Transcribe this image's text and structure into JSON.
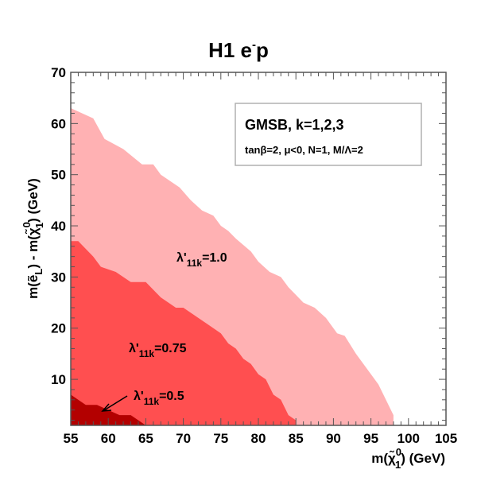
{
  "chart_data": {
    "type": "area",
    "title": "H1 e",
    "title_superscript": "-",
    "title_suffix": "p",
    "xlabel": "m(χ̃",
    "xlabel_sup": "0",
    "xlabel_sub": "1",
    "xlabel_suffix": ") (GeV)",
    "ylabel_part1": "m(ẽ",
    "ylabel_sub_L": "L",
    "ylabel_part2": ") - m(χ̃",
    "ylabel_sup": "0",
    "ylabel_sub": "1",
    "ylabel_part3": ") (GeV)",
    "xlim": [
      55,
      105
    ],
    "ylim": [
      1,
      70
    ],
    "x_ticks": [
      "55",
      "60",
      "65",
      "70",
      "75",
      "80",
      "85",
      "90",
      "95",
      "100",
      "105"
    ],
    "y_ticks": [
      "10",
      "20",
      "30",
      "40",
      "50",
      "60",
      "70"
    ],
    "x_tick_values": [
      55,
      60,
      65,
      70,
      75,
      80,
      85,
      90,
      95,
      100,
      105
    ],
    "y_tick_values": [
      10,
      20,
      30,
      40,
      50,
      60,
      70
    ],
    "legend": {
      "line1": "GMSB, k=1,2,3",
      "line2": "tanβ=2, μ<0, N=1, M/Λ=2",
      "placement": "top-right"
    },
    "series": [
      {
        "name": "λ'11k=1.0",
        "label_main": "λ'",
        "label_sub": "11k",
        "label_value": "=1.0",
        "color": "#ffb1b3",
        "boundary": [
          [
            55,
            63
          ],
          [
            58,
            61
          ],
          [
            59.5,
            57
          ],
          [
            62,
            55
          ],
          [
            64.5,
            52
          ],
          [
            66,
            52
          ],
          [
            67,
            50
          ],
          [
            69.5,
            47.5
          ],
          [
            71,
            45
          ],
          [
            72.5,
            43
          ],
          [
            74,
            42
          ],
          [
            75,
            40
          ],
          [
            76,
            39
          ],
          [
            77,
            37.5
          ],
          [
            79,
            35
          ],
          [
            80,
            33
          ],
          [
            81.5,
            31
          ],
          [
            83,
            30
          ],
          [
            84,
            28
          ],
          [
            85,
            26.5
          ],
          [
            86,
            25
          ],
          [
            87.5,
            24
          ],
          [
            89,
            22
          ],
          [
            90.5,
            19
          ],
          [
            91.5,
            18.5
          ],
          [
            93,
            15
          ],
          [
            94.5,
            12
          ],
          [
            96,
            9
          ],
          [
            98,
            3
          ],
          [
            98,
            1
          ]
        ]
      },
      {
        "name": "λ'11k=0.75",
        "label_main": "λ'",
        "label_sub": "11k",
        "label_value": "=0.75",
        "color": "#ff4f50",
        "boundary": [
          [
            55,
            37
          ],
          [
            56,
            37
          ],
          [
            58,
            34
          ],
          [
            59,
            32
          ],
          [
            61,
            31
          ],
          [
            63,
            29
          ],
          [
            65,
            29
          ],
          [
            67,
            26
          ],
          [
            69,
            24
          ],
          [
            70,
            24
          ],
          [
            72,
            22
          ],
          [
            73,
            21
          ],
          [
            75,
            19
          ],
          [
            76,
            17
          ],
          [
            77,
            16
          ],
          [
            78,
            14
          ],
          [
            79,
            13
          ],
          [
            80,
            11
          ],
          [
            81,
            10
          ],
          [
            82,
            7
          ],
          [
            83,
            6
          ],
          [
            84,
            3
          ],
          [
            85,
            2
          ],
          [
            85,
            1
          ]
        ]
      },
      {
        "name": "λ'11k=0.5",
        "label_main": "λ'",
        "label_sub": "11k",
        "label_value": "=0.5",
        "color": "#b30000",
        "boundary": [
          [
            55,
            7
          ],
          [
            57,
            5
          ],
          [
            58.5,
            5
          ],
          [
            60,
            4
          ],
          [
            61.5,
            3
          ],
          [
            63,
            3
          ],
          [
            65,
            1
          ]
        ]
      }
    ],
    "arrow_annotation": "λ'11k=0.5"
  }
}
